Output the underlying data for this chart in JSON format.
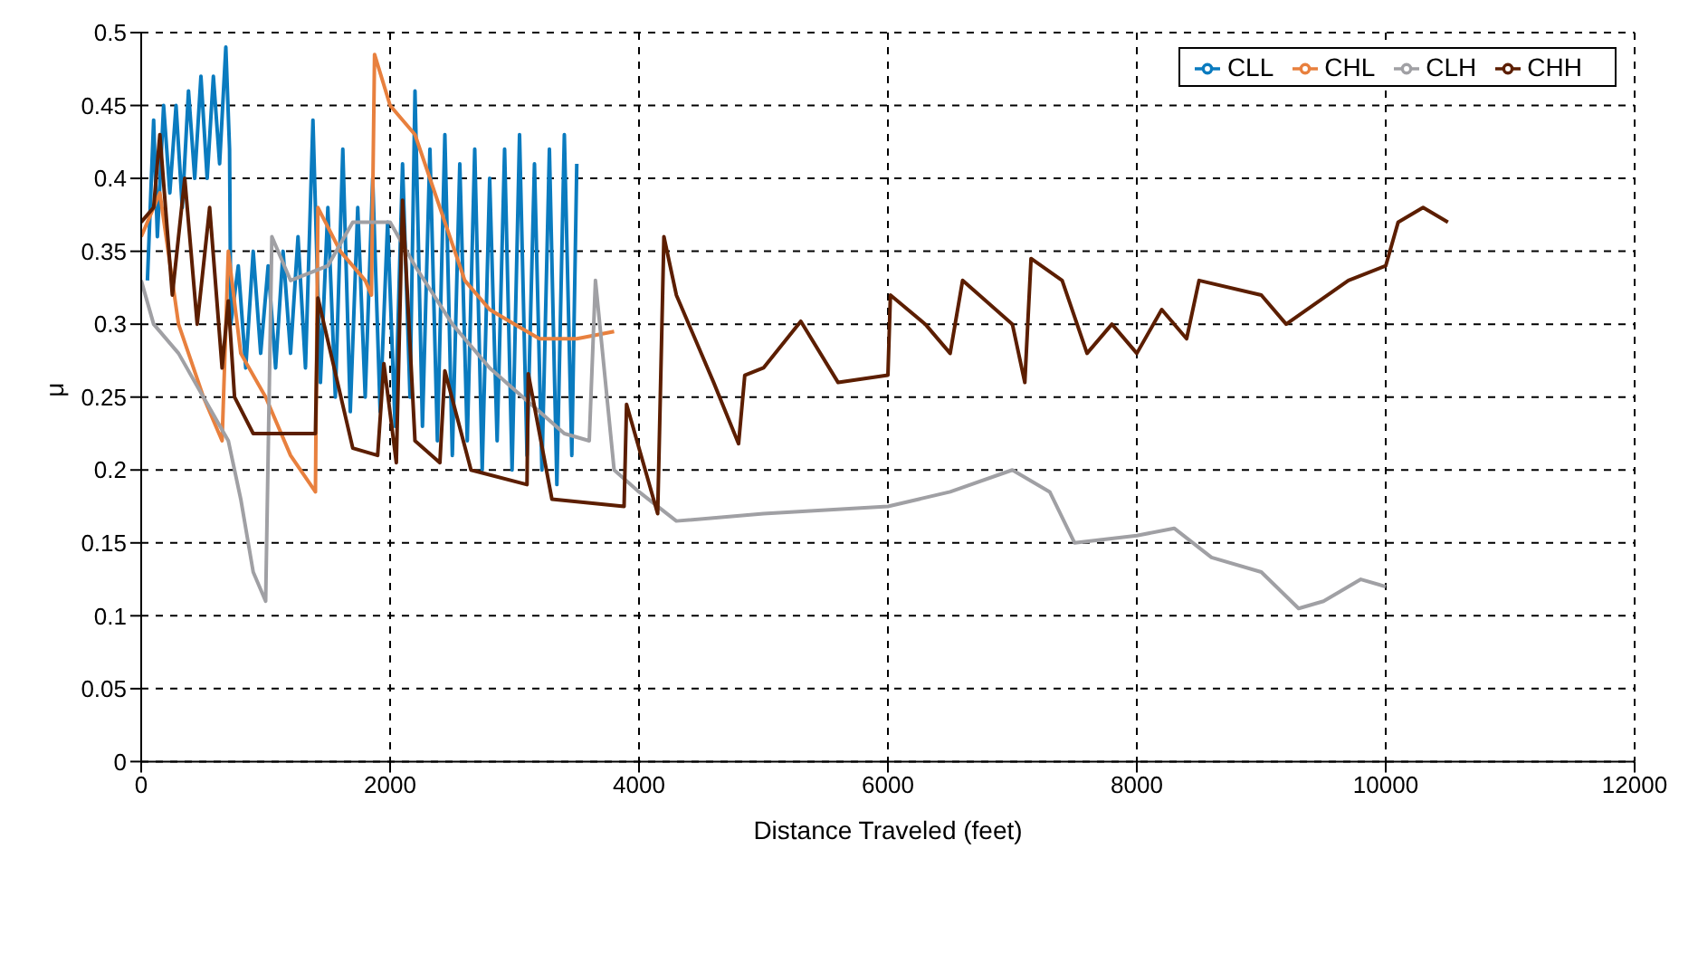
{
  "chart_data": {
    "type": "line",
    "xlabel": "Distance Traveled (feet)",
    "ylabel": "μ",
    "xlim": [
      0,
      12000
    ],
    "xticks": [
      0,
      2000,
      4000,
      6000,
      8000,
      10000,
      12000
    ],
    "ylim": [
      0,
      0.5
    ],
    "yticks": [
      0,
      0.05,
      0.1,
      0.15,
      0.2,
      0.25,
      0.3,
      0.35,
      0.4,
      0.45,
      0.5
    ],
    "grid": true,
    "legend": "top right",
    "series": [
      {
        "name": "CLL",
        "color": "#0a7bbf",
        "x": [
          50,
          100,
          130,
          180,
          230,
          280,
          330,
          380,
          430,
          480,
          530,
          580,
          630,
          680,
          710,
          720,
          780,
          840,
          900,
          960,
          1020,
          1080,
          1140,
          1200,
          1260,
          1320,
          1380,
          1440,
          1500,
          1560,
          1620,
          1680,
          1740,
          1800,
          1860,
          1920,
          1980,
          2040,
          2100,
          2160,
          2200,
          2260,
          2320,
          2380,
          2440,
          2500,
          2560,
          2620,
          2680,
          2740,
          2800,
          2860,
          2920,
          2980,
          3040,
          3100,
          3160,
          3220,
          3280,
          3340,
          3400,
          3460,
          3500
        ],
        "values": [
          0.33,
          0.44,
          0.36,
          0.45,
          0.39,
          0.45,
          0.38,
          0.46,
          0.4,
          0.47,
          0.4,
          0.47,
          0.41,
          0.49,
          0.42,
          0.3,
          0.34,
          0.27,
          0.35,
          0.28,
          0.34,
          0.27,
          0.35,
          0.28,
          0.36,
          0.27,
          0.44,
          0.26,
          0.38,
          0.25,
          0.42,
          0.24,
          0.38,
          0.25,
          0.4,
          0.24,
          0.37,
          0.23,
          0.41,
          0.25,
          0.46,
          0.23,
          0.42,
          0.22,
          0.43,
          0.21,
          0.41,
          0.22,
          0.42,
          0.2,
          0.4,
          0.22,
          0.42,
          0.2,
          0.43,
          0.21,
          0.41,
          0.2,
          0.42,
          0.19,
          0.43,
          0.21,
          0.41
        ]
      },
      {
        "name": "CHL",
        "color": "#e8803e",
        "x": [
          0,
          150,
          300,
          500,
          650,
          700,
          800,
          1000,
          1200,
          1400,
          1420,
          1600,
          1800,
          1850,
          1875,
          2000,
          2200,
          2400,
          2600,
          2800,
          3000,
          3200,
          3500,
          3800
        ],
        "values": [
          0.36,
          0.39,
          0.3,
          0.25,
          0.22,
          0.35,
          0.28,
          0.25,
          0.21,
          0.185,
          0.38,
          0.35,
          0.33,
          0.32,
          0.485,
          0.45,
          0.43,
          0.38,
          0.33,
          0.31,
          0.3,
          0.29,
          0.29,
          0.295
        ]
      },
      {
        "name": "CLH",
        "color": "#a0a0a4",
        "x": [
          0,
          100,
          300,
          500,
          700,
          800,
          900,
          1000,
          1050,
          1200,
          1500,
          1700,
          2000,
          2200,
          2500,
          2800,
          3000,
          3200,
          3400,
          3600,
          3650,
          3800,
          4000,
          4300,
          5000,
          6000,
          6500,
          7000,
          7300,
          7500,
          8000,
          8300,
          8600,
          9000,
          9300,
          9500,
          9800,
          10000
        ],
        "values": [
          0.33,
          0.3,
          0.28,
          0.25,
          0.22,
          0.18,
          0.13,
          0.11,
          0.36,
          0.33,
          0.34,
          0.37,
          0.37,
          0.34,
          0.3,
          0.27,
          0.255,
          0.24,
          0.225,
          0.22,
          0.33,
          0.2,
          0.185,
          0.165,
          0.17,
          0.175,
          0.185,
          0.2,
          0.185,
          0.15,
          0.155,
          0.16,
          0.14,
          0.13,
          0.105,
          0.11,
          0.125,
          0.12
        ]
      },
      {
        "name": "CHH",
        "color": "#5c1e00",
        "x": [
          0,
          100,
          150,
          250,
          350,
          450,
          550,
          650,
          700,
          750,
          900,
          1400,
          1420,
          1700,
          1900,
          1950,
          2050,
          2100,
          2200,
          2400,
          2440,
          2650,
          3100,
          3110,
          3300,
          3880,
          3900,
          4150,
          4200,
          4300,
          4400,
          4600,
          4800,
          4850,
          5000,
          5300,
          5600,
          6000,
          6020,
          6300,
          6500,
          6600,
          7000,
          7100,
          7150,
          7400,
          7600,
          7800,
          8000,
          8200,
          8400,
          8500,
          9000,
          9200,
          9700,
          10000,
          10100,
          10300,
          10500
        ],
        "values": [
          0.37,
          0.38,
          0.43,
          0.32,
          0.4,
          0.3,
          0.38,
          0.27,
          0.316,
          0.25,
          0.225,
          0.225,
          0.318,
          0.215,
          0.21,
          0.273,
          0.205,
          0.385,
          0.22,
          0.205,
          0.268,
          0.2,
          0.19,
          0.266,
          0.18,
          0.175,
          0.245,
          0.17,
          0.36,
          0.32,
          0.3,
          0.26,
          0.218,
          0.265,
          0.27,
          0.302,
          0.26,
          0.265,
          0.32,
          0.3,
          0.28,
          0.33,
          0.3,
          0.26,
          0.345,
          0.33,
          0.28,
          0.3,
          0.28,
          0.31,
          0.29,
          0.33,
          0.32,
          0.3,
          0.33,
          0.34,
          0.37,
          0.38,
          0.37
        ]
      }
    ]
  }
}
